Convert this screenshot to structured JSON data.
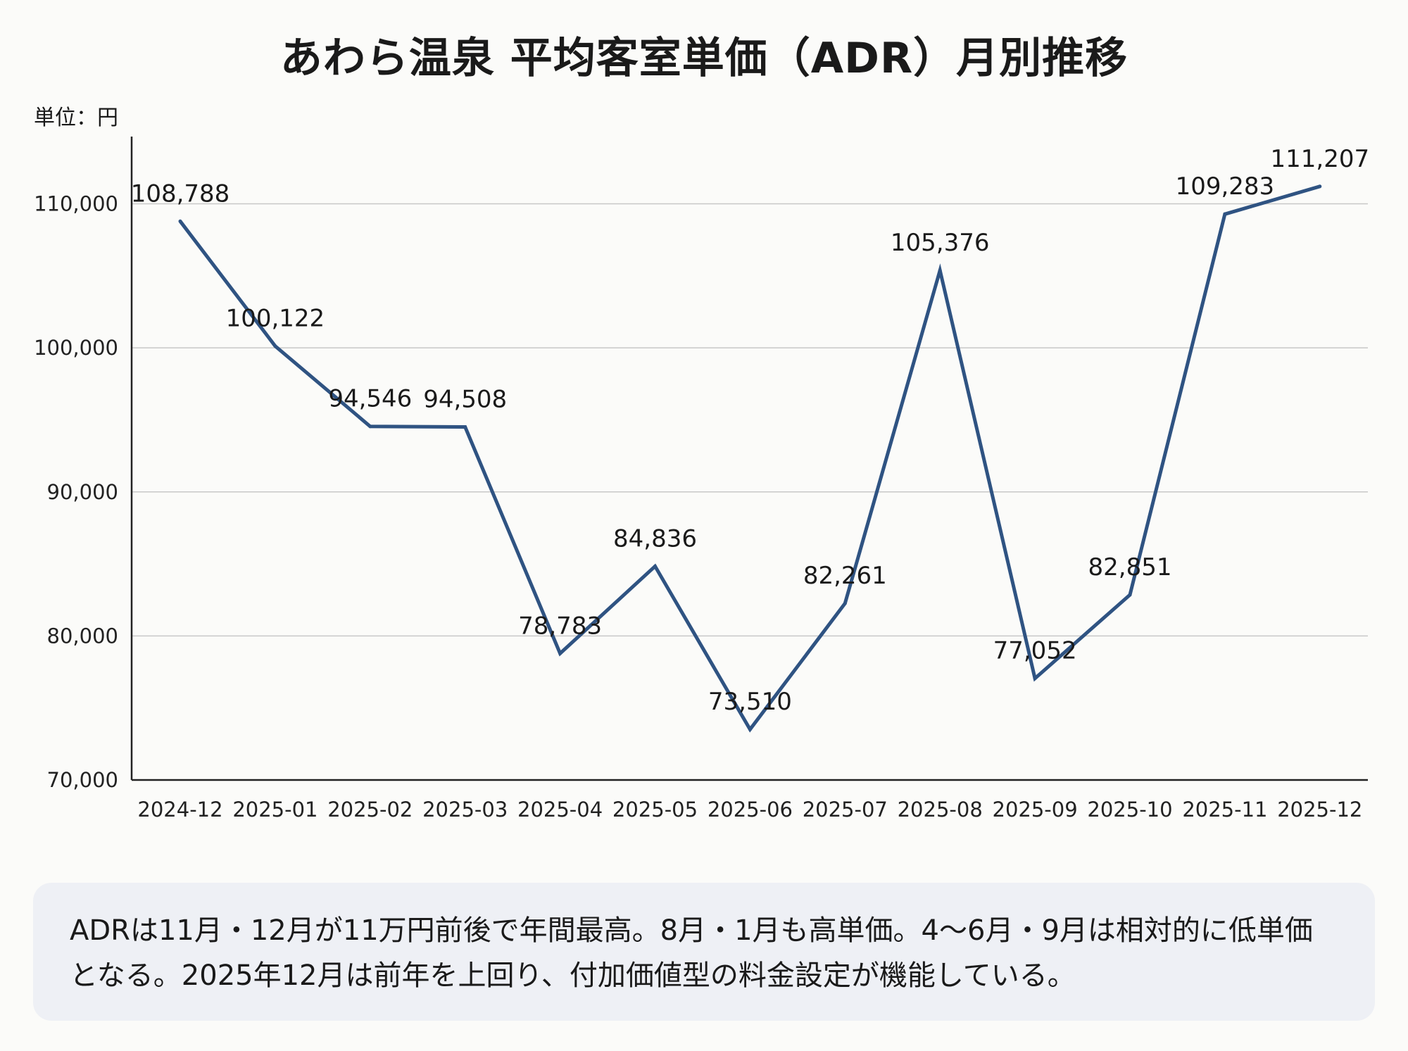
{
  "chart_data": {
    "type": "line",
    "title": "あわら温泉 平均客室単価（ADR）月別推移",
    "unit_label": "単位：円",
    "categories": [
      "2024-12",
      "2025-01",
      "2025-02",
      "2025-03",
      "2025-04",
      "2025-05",
      "2025-06",
      "2025-07",
      "2025-08",
      "2025-09",
      "2025-10",
      "2025-11",
      "2025-12"
    ],
    "values": [
      108788,
      100122,
      94546,
      94508,
      78783,
      84836,
      73510,
      82261,
      105376,
      77052,
      82851,
      109283,
      111207
    ],
    "data_labels": [
      "108,788",
      "100,122",
      "94,546",
      "94,508",
      "78,783",
      "84,836",
      "73,510",
      "82,261",
      "105,376",
      "77,052",
      "82,851",
      "109,283",
      "111,207"
    ],
    "yticks": [
      70000,
      80000,
      90000,
      100000,
      110000
    ],
    "ytick_labels": [
      "70,000",
      "80,000",
      "90,000",
      "100,000",
      "110,000"
    ],
    "ylim": [
      70000,
      114000
    ],
    "grid": "horizontal",
    "line_color": "#2f5382",
    "xlabel": "",
    "ylabel": ""
  },
  "note": "ADRは11月・12月が11万円前後で年間最高。8月・1月も高単価。4〜6月・9月は相対的に低単価となる。2025年12月は前年を上回り、付加価値型の料金設定が機能している。"
}
